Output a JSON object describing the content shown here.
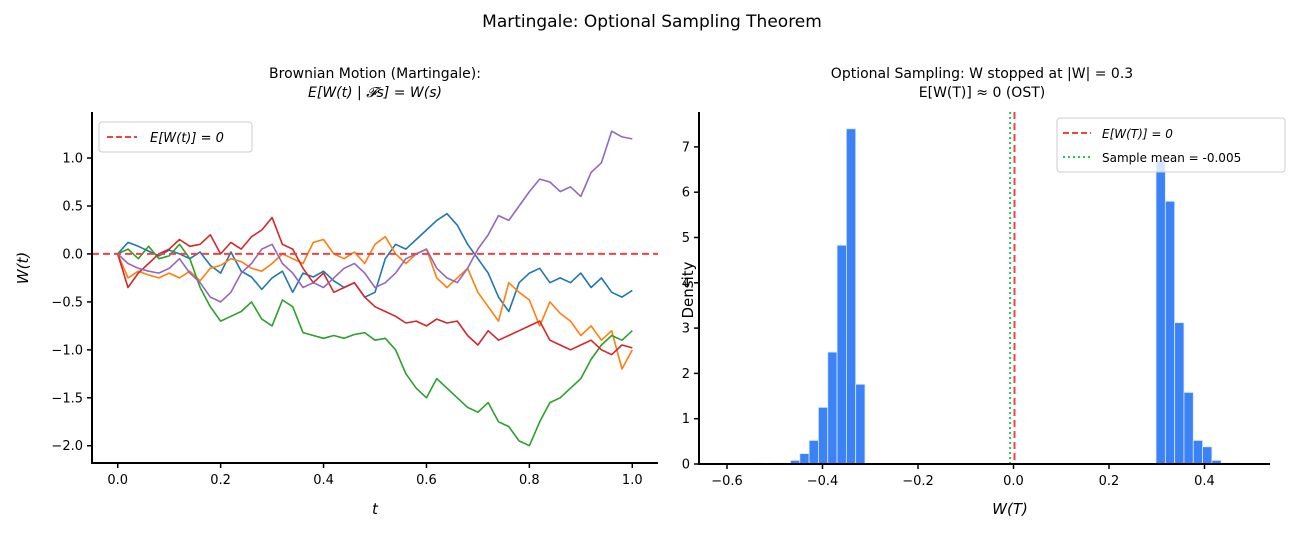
{
  "figure": {
    "suptitle": "Martingale: Optional Sampling Theorem"
  },
  "chart_data": [
    {
      "type": "line",
      "title": "Brownian Motion (Martingale):",
      "title_line2": "E[W(t) | 𝓕s] = W(s)",
      "xlabel": "t",
      "ylabel": "W(t)",
      "xlim": [
        -0.05,
        1.05
      ],
      "ylim": [
        -2.18,
        1.48
      ],
      "xticks": [
        0.0,
        0.2,
        0.4,
        0.6,
        0.8,
        1.0
      ],
      "xtick_labels": [
        "0.0",
        "0.2",
        "0.4",
        "0.6",
        "0.8",
        "1.0"
      ],
      "yticks": [
        1.0,
        0.5,
        0.0,
        -0.5,
        -1.0,
        -1.5,
        -2.0
      ],
      "ytick_labels": [
        "1.0",
        "0.5",
        "0.0",
        "−0.5",
        "−1.0",
        "−1.5",
        "−2.0"
      ],
      "grid": false,
      "legend": {
        "position": "upper left",
        "entries": [
          {
            "label": "E[W(t)] = 0",
            "style": "dashed",
            "color": "#ef4444"
          }
        ]
      },
      "hline": {
        "y": 0,
        "color": "#ef4444",
        "style": "dashed"
      },
      "series": [
        {
          "name": "path-1",
          "color": "#1f77b4",
          "x": [
            0,
            0.02,
            0.04,
            0.06,
            0.08,
            0.1,
            0.12,
            0.14,
            0.16,
            0.18,
            0.2,
            0.22,
            0.24,
            0.26,
            0.28,
            0.3,
            0.32,
            0.34,
            0.36,
            0.38,
            0.4,
            0.42,
            0.44,
            0.46,
            0.48,
            0.5,
            0.52,
            0.54,
            0.56,
            0.58,
            0.6,
            0.62,
            0.64,
            0.66,
            0.68,
            0.7,
            0.72,
            0.74,
            0.76,
            0.78,
            0.8,
            0.82,
            0.84,
            0.86,
            0.88,
            0.9,
            0.92,
            0.94,
            0.96,
            0.98,
            1.0
          ],
          "y": [
            0,
            0.12,
            0.08,
            0.03,
            -0.02,
            0.04,
            0.0,
            -0.05,
            0.02,
            -0.12,
            -0.2,
            0.02,
            -0.18,
            -0.24,
            -0.37,
            -0.25,
            -0.18,
            -0.4,
            -0.2,
            -0.24,
            -0.18,
            -0.28,
            -0.35,
            -0.3,
            -0.45,
            -0.4,
            -0.05,
            0.1,
            0.05,
            0.15,
            0.25,
            0.35,
            0.42,
            0.3,
            0.1,
            -0.05,
            -0.2,
            -0.45,
            -0.6,
            -0.3,
            -0.2,
            -0.15,
            -0.3,
            -0.25,
            -0.3,
            -0.2,
            -0.35,
            -0.25,
            -0.4,
            -0.45,
            -0.38
          ]
        },
        {
          "name": "path-2",
          "color": "#ff7f0e",
          "x": [
            0,
            0.02,
            0.04,
            0.06,
            0.08,
            0.1,
            0.12,
            0.14,
            0.16,
            0.18,
            0.2,
            0.22,
            0.24,
            0.26,
            0.28,
            0.3,
            0.32,
            0.34,
            0.36,
            0.38,
            0.4,
            0.42,
            0.44,
            0.46,
            0.48,
            0.5,
            0.52,
            0.54,
            0.56,
            0.58,
            0.6,
            0.62,
            0.64,
            0.66,
            0.68,
            0.7,
            0.72,
            0.74,
            0.76,
            0.78,
            0.8,
            0.82,
            0.84,
            0.86,
            0.88,
            0.9,
            0.92,
            0.94,
            0.96,
            0.98,
            1.0
          ],
          "y": [
            0,
            -0.25,
            -0.18,
            -0.22,
            -0.25,
            -0.2,
            -0.25,
            -0.18,
            -0.28,
            -0.15,
            -0.12,
            -0.05,
            -0.08,
            -0.15,
            -0.18,
            -0.1,
            0.0,
            -0.05,
            -0.1,
            0.12,
            0.15,
            0.0,
            -0.05,
            0.02,
            -0.1,
            0.1,
            0.18,
            0.0,
            -0.1,
            0.0,
            0.05,
            -0.25,
            -0.35,
            -0.25,
            -0.15,
            -0.4,
            -0.55,
            -0.7,
            -0.3,
            -0.4,
            -0.48,
            -0.75,
            -0.5,
            -0.62,
            -0.7,
            -0.85,
            -0.75,
            -0.9,
            -0.8,
            -1.2,
            -1.0
          ]
        },
        {
          "name": "path-3",
          "color": "#2ca02c",
          "x": [
            0,
            0.02,
            0.04,
            0.06,
            0.08,
            0.1,
            0.12,
            0.14,
            0.16,
            0.18,
            0.2,
            0.22,
            0.24,
            0.26,
            0.28,
            0.3,
            0.32,
            0.34,
            0.36,
            0.38,
            0.4,
            0.42,
            0.44,
            0.46,
            0.48,
            0.5,
            0.52,
            0.54,
            0.56,
            0.58,
            0.6,
            0.62,
            0.64,
            0.66,
            0.68,
            0.7,
            0.72,
            0.74,
            0.76,
            0.78,
            0.8,
            0.82,
            0.84,
            0.86,
            0.88,
            0.9,
            0.92,
            0.94,
            0.96,
            0.98,
            1.0
          ],
          "y": [
            0,
            0.05,
            -0.05,
            0.08,
            -0.05,
            -0.02,
            0.1,
            -0.05,
            -0.35,
            -0.55,
            -0.7,
            -0.65,
            -0.6,
            -0.5,
            -0.68,
            -0.75,
            -0.48,
            -0.55,
            -0.82,
            -0.85,
            -0.88,
            -0.85,
            -0.88,
            -0.84,
            -0.82,
            -0.9,
            -0.88,
            -1.0,
            -1.25,
            -1.4,
            -1.5,
            -1.3,
            -1.4,
            -1.5,
            -1.6,
            -1.65,
            -1.55,
            -1.75,
            -1.8,
            -1.95,
            -2.0,
            -1.75,
            -1.55,
            -1.5,
            -1.4,
            -1.3,
            -1.1,
            -0.95,
            -0.85,
            -0.9,
            -0.8
          ]
        },
        {
          "name": "path-4",
          "color": "#d62728",
          "x": [
            0,
            0.02,
            0.04,
            0.06,
            0.08,
            0.1,
            0.12,
            0.14,
            0.16,
            0.18,
            0.2,
            0.22,
            0.24,
            0.26,
            0.28,
            0.3,
            0.32,
            0.34,
            0.36,
            0.38,
            0.4,
            0.42,
            0.44,
            0.46,
            0.48,
            0.5,
            0.52,
            0.54,
            0.56,
            0.58,
            0.6,
            0.62,
            0.64,
            0.66,
            0.68,
            0.7,
            0.72,
            0.74,
            0.76,
            0.78,
            0.8,
            0.82,
            0.84,
            0.86,
            0.88,
            0.9,
            0.92,
            0.94,
            0.96,
            0.98,
            1.0
          ],
          "y": [
            0,
            -0.35,
            -0.2,
            -0.1,
            0.0,
            0.05,
            0.15,
            0.08,
            0.1,
            0.2,
            0.0,
            0.12,
            0.05,
            0.18,
            0.25,
            0.38,
            0.1,
            0.05,
            -0.15,
            -0.3,
            -0.2,
            -0.4,
            -0.35,
            -0.3,
            -0.45,
            -0.55,
            -0.6,
            -0.65,
            -0.72,
            -0.7,
            -0.75,
            -0.68,
            -0.72,
            -0.7,
            -0.85,
            -0.95,
            -0.8,
            -0.9,
            -0.85,
            -0.8,
            -0.75,
            -0.7,
            -0.9,
            -0.95,
            -1.0,
            -0.95,
            -0.9,
            -1.0,
            -1.05,
            -0.95,
            -0.98
          ]
        },
        {
          "name": "path-5",
          "color": "#9467bd",
          "x": [
            0,
            0.02,
            0.04,
            0.06,
            0.08,
            0.1,
            0.12,
            0.14,
            0.16,
            0.18,
            0.2,
            0.22,
            0.24,
            0.26,
            0.28,
            0.3,
            0.32,
            0.34,
            0.36,
            0.38,
            0.4,
            0.42,
            0.44,
            0.46,
            0.48,
            0.5,
            0.52,
            0.54,
            0.56,
            0.58,
            0.6,
            0.62,
            0.64,
            0.66,
            0.68,
            0.7,
            0.72,
            0.74,
            0.76,
            0.78,
            0.8,
            0.82,
            0.84,
            0.86,
            0.88,
            0.9,
            0.92,
            0.94,
            0.96,
            0.98,
            1.0
          ],
          "y": [
            0,
            -0.1,
            -0.15,
            -0.18,
            -0.2,
            -0.15,
            -0.05,
            -0.2,
            -0.3,
            -0.45,
            -0.5,
            -0.4,
            -0.2,
            -0.1,
            0.05,
            0.1,
            -0.1,
            -0.2,
            -0.35,
            -0.3,
            -0.35,
            -0.25,
            -0.15,
            -0.1,
            -0.2,
            -0.35,
            -0.3,
            -0.2,
            -0.05,
            0.0,
            0.05,
            -0.15,
            -0.25,
            -0.3,
            -0.15,
            0.05,
            0.2,
            0.4,
            0.35,
            0.5,
            0.65,
            0.78,
            0.75,
            0.65,
            0.7,
            0.6,
            0.85,
            0.95,
            1.28,
            1.22,
            1.2
          ]
        }
      ]
    },
    {
      "type": "bar",
      "subtype": "histogram",
      "title": "Optional Sampling: W stopped at |W| = 0.3",
      "title_line2": "E[W(T)] ≈ 0 (OST)",
      "xlabel": "W(T)",
      "ylabel": "Density",
      "xlim": [
        -0.6,
        0.57
      ],
      "ylim": [
        0,
        7.77
      ],
      "xticks": [
        -0.6,
        -0.4,
        -0.2,
        0.0,
        0.2,
        0.4
      ],
      "xtick_labels": [
        "−0.6",
        "−0.4",
        "−0.2",
        "0.0",
        "0.2",
        "0.4"
      ],
      "yticks": [
        0,
        1,
        2,
        3,
        4,
        5,
        6,
        7
      ],
      "ytick_labels": [
        "0",
        "1",
        "2",
        "3",
        "4",
        "5",
        "6",
        "7"
      ],
      "grid": false,
      "bar_color": "#3b82f6",
      "bin_width": 0.0195,
      "bins_left": [
        -0.545,
        -0.5255,
        -0.506,
        -0.4865,
        -0.467,
        -0.4475,
        -0.428,
        -0.4085,
        -0.389,
        -0.3695,
        -0.35,
        -0.3305,
        -0.311,
        -0.2915
      ],
      "values_left": [
        0.02,
        0.0,
        0.02,
        0.02,
        0.08,
        0.23,
        0.52,
        1.25,
        2.47,
        4.83,
        7.4,
        1.76,
        0.0,
        0.0
      ],
      "bins_right": [
        0.2985,
        0.318,
        0.3375,
        0.357,
        0.3765,
        0.396,
        0.4155,
        0.435,
        0.4545,
        0.474,
        0.4935
      ],
      "values_right": [
        6.7,
        5.8,
        3.12,
        1.58,
        0.52,
        0.38,
        0.08,
        0.02,
        0.02,
        0.0,
        0.0
      ],
      "vlines": [
        {
          "x": 0.0,
          "color": "#ef4444",
          "style": "dashed",
          "label": "E[W(T)] = 0"
        },
        {
          "x": -0.005,
          "color": "#22c55e",
          "style": "dotted",
          "label": "Sample mean = -0.005"
        }
      ],
      "legend": {
        "position": "upper right",
        "entries": [
          {
            "label": "E[W(T)] = 0",
            "style": "dashed",
            "color": "#ef4444"
          },
          {
            "label": "Sample mean = -0.005",
            "style": "dotted",
            "color": "#22c55e"
          }
        ]
      }
    }
  ]
}
